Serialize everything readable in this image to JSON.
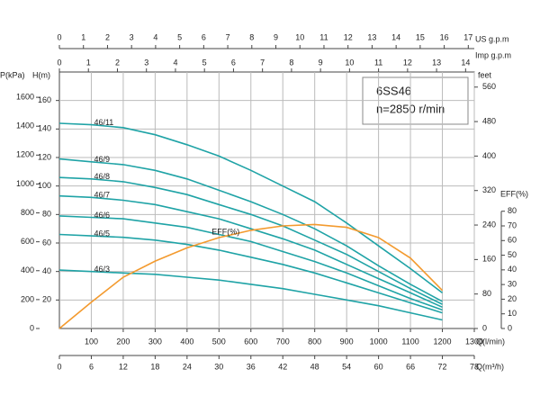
{
  "chart_data": {
    "type": "line",
    "annotation": [
      "6SS46",
      "n=2850 r/min"
    ],
    "grid": true,
    "x": [
      0,
      100,
      200,
      300,
      400,
      500,
      600,
      700,
      800,
      900,
      1000,
      1100,
      1200
    ],
    "xaxes": [
      {
        "label": "Q(l/min)",
        "position": "bottom",
        "lim": [
          0,
          1300
        ],
        "ticks": [
          100,
          200,
          300,
          400,
          500,
          600,
          700,
          800,
          900,
          1000,
          1100,
          1200,
          1300
        ]
      },
      {
        "label": "Q(m³/h)",
        "position": "bottom2",
        "lim": [
          0,
          78
        ],
        "ticks": [
          0,
          6,
          12,
          18,
          24,
          30,
          36,
          42,
          48,
          54,
          60,
          66,
          72,
          78
        ]
      },
      {
        "label": "US  g.p.m",
        "position": "top2",
        "lim": [
          0,
          17.25
        ],
        "ticks": [
          0,
          1,
          2,
          3,
          4,
          5,
          6,
          7,
          8,
          9,
          10,
          11,
          12,
          13,
          14,
          15,
          16,
          17
        ]
      },
      {
        "label": "Imp  g.p.m",
        "position": "top",
        "lim": [
          0,
          14.3
        ],
        "ticks": [
          0,
          1,
          2,
          3,
          4,
          5,
          6,
          7,
          8,
          9,
          10,
          11,
          12,
          13,
          14
        ]
      }
    ],
    "yaxes": [
      {
        "label": "H(m)",
        "position": "left",
        "lim": [
          0,
          180
        ],
        "ticks": [
          20,
          40,
          60,
          80,
          100,
          120,
          140,
          160
        ]
      },
      {
        "label": "P(kPa)",
        "position": "left2",
        "lim": [
          0,
          1775
        ],
        "ticks": [
          0,
          200,
          400,
          600,
          800,
          1000,
          1200,
          1400,
          1600
        ]
      },
      {
        "label": "feet",
        "position": "right",
        "lim": [
          0,
          595
        ],
        "ticks": [
          0,
          80,
          160,
          240,
          320,
          400,
          480,
          560
        ]
      },
      {
        "label": "EFF(%)",
        "position": "right2",
        "lim": [
          0,
          175
        ],
        "ticks": [
          0,
          10,
          20,
          30,
          40,
          50,
          60,
          70,
          80
        ]
      }
    ],
    "series": [
      {
        "name": "46/11",
        "color": "#1fa3a6",
        "yaxis": 0,
        "values": [
          144,
          143,
          141,
          136,
          129,
          121,
          111,
          100,
          89,
          74,
          58,
          42,
          25
        ]
      },
      {
        "name": "46/9",
        "color": "#1fa3a6",
        "yaxis": 0,
        "values": [
          119,
          117,
          115,
          111,
          105,
          97,
          89,
          80,
          70,
          58,
          44,
          31,
          19
        ]
      },
      {
        "name": "46/8",
        "color": "#1fa3a6",
        "yaxis": 0,
        "values": [
          106,
          105,
          103,
          99,
          94,
          87,
          80,
          72,
          62,
          52,
          40,
          28,
          17
        ]
      },
      {
        "name": "46/7",
        "color": "#1fa3a6",
        "yaxis": 0,
        "values": [
          93,
          92,
          90,
          87,
          82,
          77,
          70,
          63,
          55,
          45,
          35,
          25,
          15
        ]
      },
      {
        "name": "46/6",
        "color": "#1fa3a6",
        "yaxis": 0,
        "values": [
          79,
          78,
          77,
          74,
          71,
          66,
          61,
          54,
          47,
          39,
          30,
          21,
          13
        ]
      },
      {
        "name": "46/5",
        "color": "#1fa3a6",
        "yaxis": 0,
        "values": [
          66,
          65,
          64,
          62,
          59,
          55,
          50,
          45,
          39,
          32,
          25,
          18,
          11
        ]
      },
      {
        "name": "46/3",
        "color": "#1fa3a6",
        "yaxis": 0,
        "values": [
          41,
          40,
          39,
          38,
          36,
          34,
          31,
          28,
          24,
          20,
          16,
          11,
          6
        ]
      },
      {
        "name": "EFF(%)",
        "color": "#f39a2e",
        "yaxis": 3,
        "values": [
          0,
          18,
          35,
          46,
          55,
          62,
          67,
          70,
          71,
          69,
          62,
          48,
          26
        ]
      }
    ]
  }
}
